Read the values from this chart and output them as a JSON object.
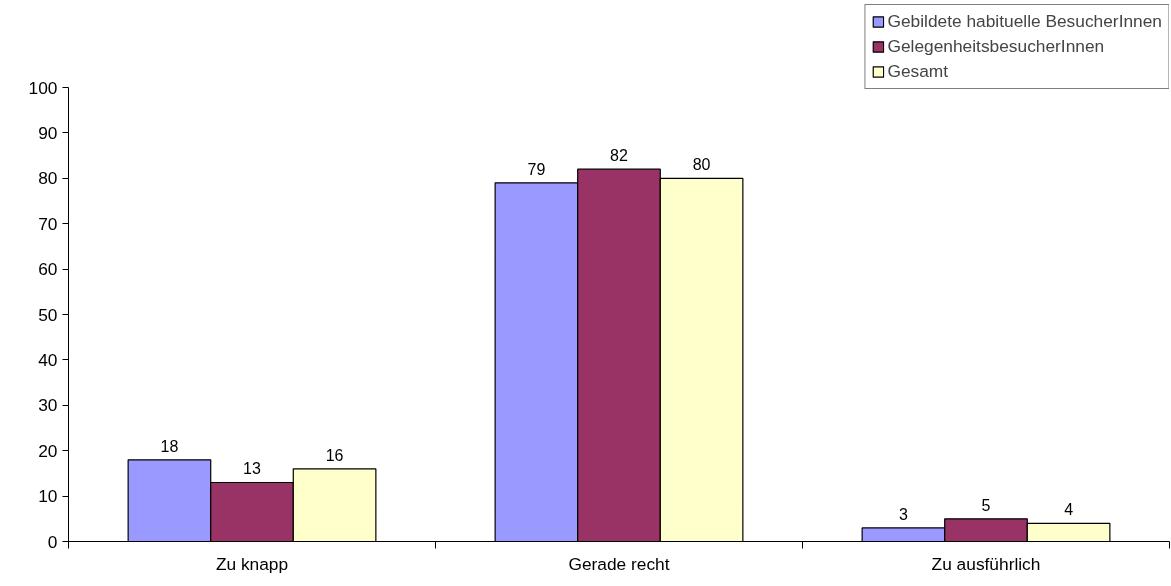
{
  "chart_data": {
    "type": "bar",
    "categories": [
      "Zu knapp",
      "Gerade recht",
      "Zu ausführlich"
    ],
    "series": [
      {
        "name": "Gebildete habituelle BesucherInnen",
        "color": "#9999ff",
        "values": [
          18,
          79,
          3
        ]
      },
      {
        "name": "GelegenheitsbesucherInnen",
        "color": "#993366",
        "values": [
          13,
          82,
          5
        ]
      },
      {
        "name": "Gesamt",
        "color": "#ffffcc",
        "values": [
          16,
          80,
          4
        ]
      }
    ],
    "ylim": [
      0,
      100
    ],
    "yticks": [
      0,
      10,
      20,
      30,
      40,
      50,
      60,
      70,
      80,
      90,
      100
    ],
    "grid": false,
    "legend": "top right",
    "data_labels": true
  }
}
